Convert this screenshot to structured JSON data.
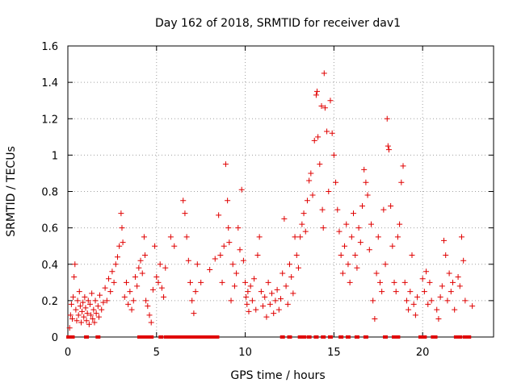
{
  "chart_data": {
    "type": "scatter",
    "title": "Day 162 of 2018, SRMTID for receiver dav1",
    "xlabel": "GPS time / hours",
    "ylabel": "SRMTID / TECUs",
    "xlim": [
      0,
      24
    ],
    "ylim": [
      0,
      1.6
    ],
    "x_ticks": [
      0,
      5,
      10,
      15,
      20
    ],
    "x_tick_labels": [
      "0",
      "5",
      "10",
      "15",
      "20"
    ],
    "y_ticks": [
      0,
      0.2,
      0.4,
      0.6,
      0.8,
      1.0,
      1.2,
      1.4,
      1.6
    ],
    "y_tick_labels": [
      "0",
      "0.2",
      "0.4",
      "0.6",
      "0.8",
      "1",
      "1.2",
      "1.4",
      "1.6"
    ],
    "grid": true,
    "marker": "plus",
    "series": [
      {
        "name": "SRMTID",
        "color": "#e00000",
        "points": [
          [
            0.1,
            0.05
          ],
          [
            0.15,
            0.12
          ],
          [
            0.2,
            0.18
          ],
          [
            0.25,
            0.1
          ],
          [
            0.3,
            0.22
          ],
          [
            0.35,
            0.33
          ],
          [
            0.4,
            0.4
          ],
          [
            0.45,
            0.15
          ],
          [
            0.5,
            0.09
          ],
          [
            0.55,
            0.2
          ],
          [
            0.6,
            0.12
          ],
          [
            0.65,
            0.25
          ],
          [
            0.7,
            0.17
          ],
          [
            0.75,
            0.08
          ],
          [
            0.8,
            0.14
          ],
          [
            0.85,
            0.19
          ],
          [
            0.9,
            0.11
          ],
          [
            0.95,
            0.22
          ],
          [
            1.0,
            0.16
          ],
          [
            1.05,
            0.09
          ],
          [
            1.1,
            0.13
          ],
          [
            1.15,
            0.2
          ],
          [
            1.2,
            0.07
          ],
          [
            1.25,
            0.18
          ],
          [
            1.3,
            0.12
          ],
          [
            1.35,
            0.24
          ],
          [
            1.4,
            0.1
          ],
          [
            1.45,
            0.15
          ],
          [
            1.5,
            0.08
          ],
          [
            1.55,
            0.2
          ],
          [
            1.6,
            0.13
          ],
          [
            1.7,
            0.17
          ],
          [
            1.75,
            0.11
          ],
          [
            1.8,
            0.23
          ],
          [
            1.9,
            0.15
          ],
          [
            2.0,
            0.19
          ],
          [
            2.1,
            0.27
          ],
          [
            2.2,
            0.2
          ],
          [
            2.3,
            0.32
          ],
          [
            2.4,
            0.25
          ],
          [
            2.5,
            0.36
          ],
          [
            2.6,
            0.3
          ],
          [
            2.7,
            0.4
          ],
          [
            2.8,
            0.44
          ],
          [
            2.9,
            0.5
          ],
          [
            3.0,
            0.68
          ],
          [
            3.05,
            0.6
          ],
          [
            3.1,
            0.52
          ],
          [
            3.2,
            0.22
          ],
          [
            3.3,
            0.3
          ],
          [
            3.4,
            0.18
          ],
          [
            3.5,
            0.25
          ],
          [
            3.6,
            0.15
          ],
          [
            3.7,
            0.2
          ],
          [
            3.8,
            0.33
          ],
          [
            3.9,
            0.28
          ],
          [
            4.0,
            0.38
          ],
          [
            4.1,
            0.42
          ],
          [
            4.2,
            0.35
          ],
          [
            4.3,
            0.55
          ],
          [
            4.35,
            0.45
          ],
          [
            4.4,
            0.2
          ],
          [
            4.5,
            0.17
          ],
          [
            4.6,
            0.12
          ],
          [
            4.7,
            0.08
          ],
          [
            4.8,
            0.26
          ],
          [
            4.9,
            0.5
          ],
          [
            5.0,
            0.33
          ],
          [
            5.1,
            0.3
          ],
          [
            5.2,
            0.4
          ],
          [
            5.3,
            0.27
          ],
          [
            5.4,
            0.22
          ],
          [
            5.5,
            0.38
          ],
          [
            5.8,
            0.55
          ],
          [
            6.0,
            0.5
          ],
          [
            6.5,
            0.75
          ],
          [
            6.6,
            0.68
          ],
          [
            6.7,
            0.55
          ],
          [
            6.8,
            0.42
          ],
          [
            6.9,
            0.3
          ],
          [
            7.0,
            0.2
          ],
          [
            7.1,
            0.13
          ],
          [
            7.2,
            0.25
          ],
          [
            7.3,
            0.4
          ],
          [
            7.5,
            0.3
          ],
          [
            8.0,
            0.37
          ],
          [
            8.3,
            0.43
          ],
          [
            8.5,
            0.67
          ],
          [
            8.6,
            0.45
          ],
          [
            8.7,
            0.3
          ],
          [
            8.8,
            0.5
          ],
          [
            8.9,
            0.95
          ],
          [
            9.0,
            0.75
          ],
          [
            9.05,
            0.6
          ],
          [
            9.1,
            0.52
          ],
          [
            9.2,
            0.2
          ],
          [
            9.3,
            0.4
          ],
          [
            9.4,
            0.28
          ],
          [
            9.5,
            0.35
          ],
          [
            9.6,
            0.6
          ],
          [
            9.7,
            0.48
          ],
          [
            9.8,
            0.81
          ],
          [
            9.9,
            0.42
          ],
          [
            10.0,
            0.3
          ],
          [
            10.05,
            0.22
          ],
          [
            10.1,
            0.18
          ],
          [
            10.15,
            0.25
          ],
          [
            10.2,
            0.14
          ],
          [
            10.3,
            0.28
          ],
          [
            10.4,
            0.2
          ],
          [
            10.5,
            0.32
          ],
          [
            10.6,
            0.15
          ],
          [
            10.7,
            0.45
          ],
          [
            10.8,
            0.55
          ],
          [
            10.9,
            0.25
          ],
          [
            11.0,
            0.17
          ],
          [
            11.1,
            0.22
          ],
          [
            11.2,
            0.11
          ],
          [
            11.3,
            0.3
          ],
          [
            11.4,
            0.18
          ],
          [
            11.5,
            0.24
          ],
          [
            11.6,
            0.13
          ],
          [
            11.7,
            0.2
          ],
          [
            11.8,
            0.26
          ],
          [
            11.9,
            0.15
          ],
          [
            12.0,
            0.21
          ],
          [
            12.1,
            0.35
          ],
          [
            12.2,
            0.65
          ],
          [
            12.3,
            0.28
          ],
          [
            12.4,
            0.18
          ],
          [
            12.5,
            0.4
          ],
          [
            12.6,
            0.33
          ],
          [
            12.7,
            0.24
          ],
          [
            12.8,
            0.55
          ],
          [
            12.9,
            0.45
          ],
          [
            13.0,
            0.38
          ],
          [
            13.1,
            0.55
          ],
          [
            13.2,
            0.62
          ],
          [
            13.3,
            0.68
          ],
          [
            13.4,
            0.58
          ],
          [
            13.5,
            0.75
          ],
          [
            13.6,
            0.86
          ],
          [
            13.7,
            0.9
          ],
          [
            13.8,
            0.78
          ],
          [
            13.9,
            1.08
          ],
          [
            14.0,
            1.33
          ],
          [
            14.05,
            1.35
          ],
          [
            14.1,
            1.1
          ],
          [
            14.2,
            0.95
          ],
          [
            14.3,
            1.27
          ],
          [
            14.35,
            0.7
          ],
          [
            14.4,
            0.6
          ],
          [
            14.45,
            1.45
          ],
          [
            14.5,
            1.26
          ],
          [
            14.6,
            1.13
          ],
          [
            14.7,
            0.8
          ],
          [
            14.8,
            1.3
          ],
          [
            14.9,
            1.12
          ],
          [
            15.0,
            1.0
          ],
          [
            15.1,
            0.85
          ],
          [
            15.2,
            0.7
          ],
          [
            15.3,
            0.58
          ],
          [
            15.4,
            0.45
          ],
          [
            15.5,
            0.35
          ],
          [
            15.6,
            0.5
          ],
          [
            15.7,
            0.62
          ],
          [
            15.8,
            0.4
          ],
          [
            15.9,
            0.3
          ],
          [
            16.0,
            0.55
          ],
          [
            16.1,
            0.68
          ],
          [
            16.2,
            0.45
          ],
          [
            16.3,
            0.38
          ],
          [
            16.4,
            0.6
          ],
          [
            16.5,
            0.52
          ],
          [
            16.6,
            0.72
          ],
          [
            16.7,
            0.92
          ],
          [
            16.8,
            0.85
          ],
          [
            16.9,
            0.78
          ],
          [
            17.0,
            0.48
          ],
          [
            17.1,
            0.62
          ],
          [
            17.2,
            0.2
          ],
          [
            17.3,
            0.1
          ],
          [
            17.4,
            0.35
          ],
          [
            17.5,
            0.55
          ],
          [
            17.6,
            0.3
          ],
          [
            17.7,
            0.25
          ],
          [
            17.8,
            0.7
          ],
          [
            17.9,
            0.4
          ],
          [
            18.0,
            1.2
          ],
          [
            18.05,
            1.05
          ],
          [
            18.1,
            1.03
          ],
          [
            18.2,
            0.72
          ],
          [
            18.3,
            0.5
          ],
          [
            18.4,
            0.3
          ],
          [
            18.5,
            0.25
          ],
          [
            18.6,
            0.55
          ],
          [
            18.7,
            0.62
          ],
          [
            18.8,
            0.85
          ],
          [
            18.9,
            0.94
          ],
          [
            19.0,
            0.3
          ],
          [
            19.1,
            0.2
          ],
          [
            19.2,
            0.15
          ],
          [
            19.3,
            0.25
          ],
          [
            19.4,
            0.45
          ],
          [
            19.5,
            0.18
          ],
          [
            19.6,
            0.12
          ],
          [
            19.7,
            0.22
          ],
          [
            20.0,
            0.32
          ],
          [
            20.1,
            0.25
          ],
          [
            20.2,
            0.36
          ],
          [
            20.3,
            0.18
          ],
          [
            20.4,
            0.3
          ],
          [
            20.5,
            0.2
          ],
          [
            20.8,
            0.15
          ],
          [
            20.9,
            0.1
          ],
          [
            21.0,
            0.22
          ],
          [
            21.1,
            0.28
          ],
          [
            21.2,
            0.53
          ],
          [
            21.3,
            0.45
          ],
          [
            21.4,
            0.2
          ],
          [
            21.5,
            0.35
          ],
          [
            21.6,
            0.25
          ],
          [
            21.7,
            0.3
          ],
          [
            21.8,
            0.15
          ],
          [
            22.0,
            0.33
          ],
          [
            22.1,
            0.28
          ],
          [
            22.2,
            0.55
          ],
          [
            22.3,
            0.42
          ],
          [
            22.4,
            0.2
          ],
          [
            22.8,
            0.17
          ]
        ]
      }
    ],
    "baseline_markers": {
      "color": "#e00000",
      "y": 0,
      "x": [
        0.05,
        0.1,
        0.15,
        0.2,
        0.25,
        1.05,
        1.7,
        4.05,
        4.15,
        4.3,
        4.5,
        4.7,
        5.25,
        5.55,
        5.65,
        5.75,
        5.85,
        5.95,
        6.05,
        6.15,
        6.3,
        6.4,
        6.5,
        6.65,
        6.85,
        7.0,
        7.1,
        7.2,
        7.3,
        7.4,
        7.5,
        7.6,
        7.7,
        7.8,
        7.9,
        8.0,
        8.1,
        8.2,
        8.3,
        8.4,
        12.1,
        12.5,
        13.1,
        13.3,
        13.6,
        14.0,
        14.4,
        14.8,
        15.4,
        15.8,
        16.3,
        16.8,
        17.9,
        18.4,
        18.6,
        19.9,
        20.0,
        20.1,
        20.6,
        20.7,
        21.9,
        22.0,
        22.1,
        22.4,
        22.5,
        22.6
      ]
    }
  }
}
